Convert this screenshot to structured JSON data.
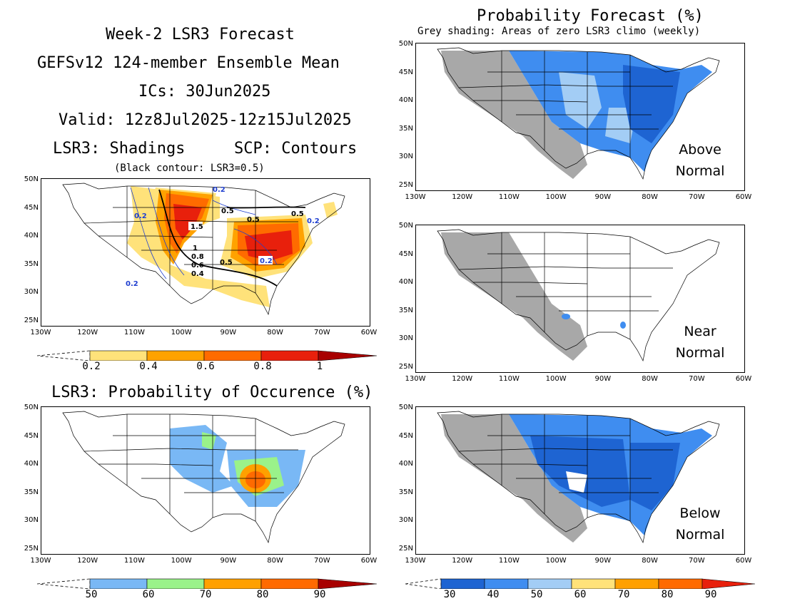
{
  "left_header": {
    "line1": "Week-2 LSR3 Forecast",
    "line2": "GEFSv12 124-member Ensemble Mean",
    "line3": "ICs: 30Jun2025",
    "line4": "Valid: 12z8Jul2025-12z15Jul2025",
    "shadings": "LSR3: Shadings",
    "contours": "SCP: Contours",
    "note": "(Black contour: LSR3=0.5)"
  },
  "right_header": {
    "title": "Probability Forecast (%)",
    "subtitle": "Grey shading: Areas of zero LSR3 climo (weekly)"
  },
  "occurrence_title": "LSR3: Probability of Occurence (%)",
  "lat_labels": [
    "50N",
    "45N",
    "40N",
    "35N",
    "30N",
    "25N"
  ],
  "lon_labels": [
    "130W",
    "120W",
    "110W",
    "100W",
    "90W",
    "80W",
    "70W",
    "60W"
  ],
  "panel_labels": {
    "above": [
      "Above",
      "Normal"
    ],
    "near": [
      "Near",
      "Normal"
    ],
    "below": [
      "Below",
      "Normal"
    ]
  },
  "contour_labels": [
    "0.5",
    "0.5",
    "0.5",
    "0.5",
    "1.5",
    "1",
    "0.8",
    "0.6",
    "0.4",
    "0.2",
    "0.2",
    "0.2",
    "0.2",
    "0.2"
  ],
  "colorbars": {
    "lsr3": {
      "labels": [
        "0.2",
        "0.4",
        "0.6",
        "0.8",
        "1"
      ],
      "colors": [
        "#ffe27a",
        "#ffa200",
        "#ff6b00",
        "#e8200c",
        "#a80000"
      ]
    },
    "occurrence": {
      "labels": [
        "50",
        "60",
        "70",
        "80",
        "90"
      ],
      "colors": [
        "#79b8f5",
        "#9af28a",
        "#ffa000",
        "#ff6a00",
        "#a80000"
      ]
    },
    "probability": {
      "labels": [
        "30",
        "40",
        "50",
        "60",
        "70",
        "80",
        "90"
      ],
      "colors": [
        "#1e64d2",
        "#3f8df0",
        "#a3cdf5",
        "#ffe27a",
        "#ffa000",
        "#ff6a00",
        "#e8200c"
      ]
    }
  },
  "colors": {
    "grey_zero_climo": "#a8a8a8",
    "contour_blue": "#1f3fd0"
  }
}
